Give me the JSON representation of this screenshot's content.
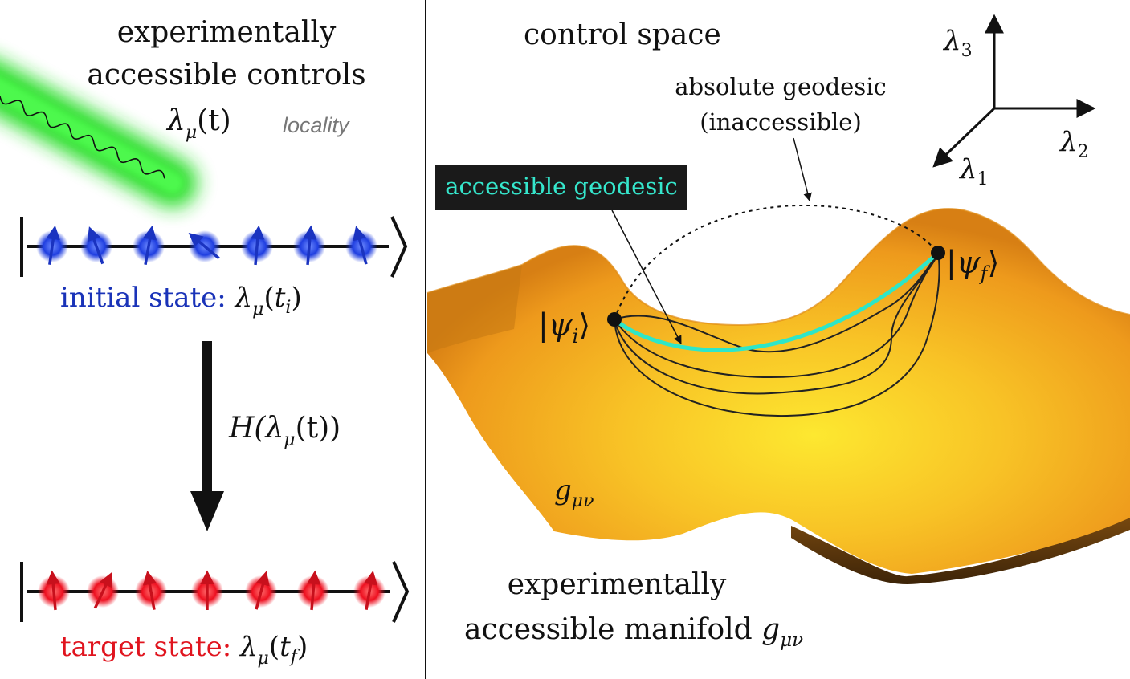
{
  "left_panel": {
    "title_line1": "experimentally",
    "title_line2": "accessible controls",
    "control_symbol": "λ",
    "control_sub": "μ",
    "control_arg": "(t)",
    "locality_label": "locality",
    "initial_label": "initial state: ",
    "initial_sub": "i",
    "hamiltonian_label": "H(λ",
    "hamiltonian_sub": "μ",
    "hamiltonian_tail": "(t))",
    "target_label": "target state: ",
    "target_sub": "f",
    "colors": {
      "initial": "#1a33b8",
      "target": "#e0141e",
      "laser": "#22dd22"
    }
  },
  "right_panel": {
    "title": "control space",
    "axis_lambda3": "λ",
    "axis_lambda3_sub": "3",
    "axis_lambda2": "λ",
    "axis_lambda2_sub": "2",
    "axis_lambda1": "λ",
    "axis_lambda1_sub": "1",
    "absolute_line1": "absolute geodesic",
    "absolute_line2": "(inaccessible)",
    "accessible_label": "accessible geodesic",
    "psi_i": "|ψ",
    "psi_i_sub": "i",
    "psi_f": "|ψ",
    "psi_f_sub": "f",
    "metric": "g",
    "metric_sub": "μν",
    "bottom_line1": "experimentally",
    "bottom_line2": "accessible manifold ",
    "bottom_metric": "g",
    "bottom_metric_sub": "μν",
    "colors": {
      "surface": "#f2a322",
      "surface_light": "#fde030",
      "geodesic": "#2ee6c8",
      "label_bg": "#1a1a1a"
    }
  }
}
